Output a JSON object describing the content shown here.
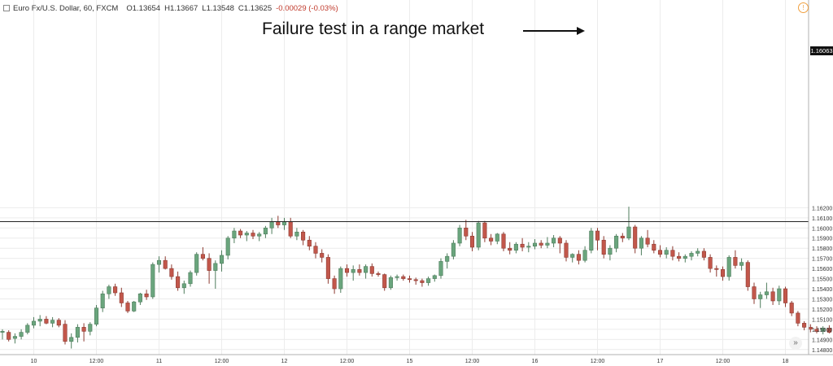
{
  "header": {
    "symbol": "Euro Fx/U.S. Dollar, 60, FXCM",
    "open": "O1.13654",
    "high": "H1.13667",
    "low": "L1.13548",
    "close": "C1.13625",
    "change": "-0.00029 (-0.03%)",
    "warning": "!"
  },
  "annotation": {
    "text": "Failure test in a range market"
  },
  "scroll_button": "»",
  "current_price_tag": "1.16063",
  "colors": {
    "up": "#6aa57d",
    "down": "#c2574b",
    "grid": "#ececec",
    "axis_text": "#333333"
  },
  "chart_data": {
    "type": "candlestick",
    "title": "",
    "current_price": 1.16063,
    "ylim": [
      1.1475,
      1.1825
    ],
    "y_ticks": [
      "1.14800",
      "1.14900",
      "1.15000",
      "1.15100",
      "1.15200",
      "1.15300",
      "1.15400",
      "1.15500",
      "1.15600",
      "1.15700",
      "1.15800",
      "1.15900",
      "1.16000",
      "1.16100",
      "1.16200"
    ],
    "x_ticks": [
      {
        "label": "10",
        "index": 5
      },
      {
        "label": "12:00",
        "index": 15
      },
      {
        "label": "11",
        "index": 25
      },
      {
        "label": "12:00",
        "index": 35
      },
      {
        "label": "12",
        "index": 45
      },
      {
        "label": "12:00",
        "index": 55
      },
      {
        "label": "15",
        "index": 65
      },
      {
        "label": "12:00",
        "index": 75
      },
      {
        "label": "16",
        "index": 85
      },
      {
        "label": "12:00",
        "index": 95
      },
      {
        "label": "17",
        "index": 105
      },
      {
        "label": "12:00",
        "index": 115
      },
      {
        "label": "18",
        "index": 125
      }
    ],
    "candles": [
      {
        "o": 1.1497,
        "h": 1.15,
        "l": 1.149,
        "c": 1.1498
      },
      {
        "o": 1.1497,
        "h": 1.1499,
        "l": 1.1488,
        "c": 1.149
      },
      {
        "o": 1.1491,
        "h": 1.1496,
        "l": 1.1486,
        "c": 1.1493
      },
      {
        "o": 1.1493,
        "h": 1.15,
        "l": 1.149,
        "c": 1.1497
      },
      {
        "o": 1.1497,
        "h": 1.1506,
        "l": 1.1495,
        "c": 1.1504
      },
      {
        "o": 1.1504,
        "h": 1.1512,
        "l": 1.1501,
        "c": 1.1508
      },
      {
        "o": 1.1508,
        "h": 1.1514,
        "l": 1.1503,
        "c": 1.151
      },
      {
        "o": 1.151,
        "h": 1.1513,
        "l": 1.1505,
        "c": 1.1506
      },
      {
        "o": 1.1506,
        "h": 1.1512,
        "l": 1.1502,
        "c": 1.1509
      },
      {
        "o": 1.1509,
        "h": 1.1511,
        "l": 1.1502,
        "c": 1.1504
      },
      {
        "o": 1.1505,
        "h": 1.1509,
        "l": 1.1485,
        "c": 1.1488
      },
      {
        "o": 1.1488,
        "h": 1.1496,
        "l": 1.1481,
        "c": 1.1492
      },
      {
        "o": 1.1492,
        "h": 1.1505,
        "l": 1.1487,
        "c": 1.1502
      },
      {
        "o": 1.1502,
        "h": 1.1506,
        "l": 1.1488,
        "c": 1.1498
      },
      {
        "o": 1.1498,
        "h": 1.1507,
        "l": 1.1494,
        "c": 1.1505
      },
      {
        "o": 1.1505,
        "h": 1.1524,
        "l": 1.1503,
        "c": 1.1521
      },
      {
        "o": 1.1521,
        "h": 1.1538,
        "l": 1.1517,
        "c": 1.1535
      },
      {
        "o": 1.1535,
        "h": 1.1544,
        "l": 1.153,
        "c": 1.1542
      },
      {
        "o": 1.1542,
        "h": 1.1545,
        "l": 1.1533,
        "c": 1.1536
      },
      {
        "o": 1.1536,
        "h": 1.1541,
        "l": 1.1522,
        "c": 1.1526
      },
      {
        "o": 1.1526,
        "h": 1.1528,
        "l": 1.1516,
        "c": 1.1518
      },
      {
        "o": 1.1518,
        "h": 1.1528,
        "l": 1.1517,
        "c": 1.1527
      },
      {
        "o": 1.1527,
        "h": 1.1536,
        "l": 1.1524,
        "c": 1.1535
      },
      {
        "o": 1.1535,
        "h": 1.1539,
        "l": 1.1529,
        "c": 1.1532
      },
      {
        "o": 1.1532,
        "h": 1.1566,
        "l": 1.153,
        "c": 1.1564
      },
      {
        "o": 1.1564,
        "h": 1.1572,
        "l": 1.1556,
        "c": 1.1568
      },
      {
        "o": 1.1568,
        "h": 1.1572,
        "l": 1.1559,
        "c": 1.156
      },
      {
        "o": 1.156,
        "h": 1.1564,
        "l": 1.1549,
        "c": 1.1552
      },
      {
        "o": 1.1552,
        "h": 1.1557,
        "l": 1.1538,
        "c": 1.1541
      },
      {
        "o": 1.1541,
        "h": 1.1548,
        "l": 1.1535,
        "c": 1.1545
      },
      {
        "o": 1.1545,
        "h": 1.1558,
        "l": 1.1542,
        "c": 1.1556
      },
      {
        "o": 1.1556,
        "h": 1.1576,
        "l": 1.1553,
        "c": 1.1574
      },
      {
        "o": 1.1574,
        "h": 1.1581,
        "l": 1.1568,
        "c": 1.157
      },
      {
        "o": 1.157,
        "h": 1.1575,
        "l": 1.1545,
        "c": 1.1558
      },
      {
        "o": 1.1558,
        "h": 1.1568,
        "l": 1.154,
        "c": 1.1565
      },
      {
        "o": 1.1565,
        "h": 1.1578,
        "l": 1.1557,
        "c": 1.1573
      },
      {
        "o": 1.1573,
        "h": 1.1592,
        "l": 1.1569,
        "c": 1.159
      },
      {
        "o": 1.159,
        "h": 1.16,
        "l": 1.1585,
        "c": 1.1597
      },
      {
        "o": 1.1597,
        "h": 1.1599,
        "l": 1.159,
        "c": 1.1593
      },
      {
        "o": 1.1593,
        "h": 1.1597,
        "l": 1.1587,
        "c": 1.1595
      },
      {
        "o": 1.1595,
        "h": 1.1598,
        "l": 1.1589,
        "c": 1.1592
      },
      {
        "o": 1.1592,
        "h": 1.1596,
        "l": 1.1587,
        "c": 1.1594
      },
      {
        "o": 1.1594,
        "h": 1.1602,
        "l": 1.159,
        "c": 1.16
      },
      {
        "o": 1.16,
        "h": 1.161,
        "l": 1.1594,
        "c": 1.1606
      },
      {
        "o": 1.1606,
        "h": 1.1612,
        "l": 1.16,
        "c": 1.1603
      },
      {
        "o": 1.1603,
        "h": 1.161,
        "l": 1.1598,
        "c": 1.1606
      },
      {
        "o": 1.1606,
        "h": 1.161,
        "l": 1.159,
        "c": 1.1592
      },
      {
        "o": 1.1592,
        "h": 1.16,
        "l": 1.1588,
        "c": 1.1596
      },
      {
        "o": 1.1596,
        "h": 1.1598,
        "l": 1.1583,
        "c": 1.1588
      },
      {
        "o": 1.1588,
        "h": 1.1592,
        "l": 1.1578,
        "c": 1.1582
      },
      {
        "o": 1.1582,
        "h": 1.1586,
        "l": 1.157,
        "c": 1.1575
      },
      {
        "o": 1.1575,
        "h": 1.1579,
        "l": 1.1566,
        "c": 1.1571
      },
      {
        "o": 1.1571,
        "h": 1.1574,
        "l": 1.1545,
        "c": 1.155
      },
      {
        "o": 1.155,
        "h": 1.1553,
        "l": 1.1535,
        "c": 1.154
      },
      {
        "o": 1.154,
        "h": 1.1562,
        "l": 1.1536,
        "c": 1.156
      },
      {
        "o": 1.156,
        "h": 1.1564,
        "l": 1.1552,
        "c": 1.1556
      },
      {
        "o": 1.1556,
        "h": 1.1563,
        "l": 1.1548,
        "c": 1.1559
      },
      {
        "o": 1.1559,
        "h": 1.1564,
        "l": 1.1553,
        "c": 1.1556
      },
      {
        "o": 1.1556,
        "h": 1.1564,
        "l": 1.155,
        "c": 1.1562
      },
      {
        "o": 1.1562,
        "h": 1.1565,
        "l": 1.1552,
        "c": 1.1555
      },
      {
        "o": 1.1555,
        "h": 1.1557,
        "l": 1.1552,
        "c": 1.1554
      },
      {
        "o": 1.1554,
        "h": 1.1555,
        "l": 1.1538,
        "c": 1.1541
      },
      {
        "o": 1.1541,
        "h": 1.1553,
        "l": 1.1539,
        "c": 1.1551
      },
      {
        "o": 1.1551,
        "h": 1.1554,
        "l": 1.1548,
        "c": 1.1552
      },
      {
        "o": 1.1552,
        "h": 1.1554,
        "l": 1.1548,
        "c": 1.155
      },
      {
        "o": 1.155,
        "h": 1.1553,
        "l": 1.1546,
        "c": 1.1549
      },
      {
        "o": 1.1549,
        "h": 1.1551,
        "l": 1.1544,
        "c": 1.1548
      },
      {
        "o": 1.1548,
        "h": 1.155,
        "l": 1.1542,
        "c": 1.1546
      },
      {
        "o": 1.1546,
        "h": 1.1552,
        "l": 1.1543,
        "c": 1.155
      },
      {
        "o": 1.155,
        "h": 1.1554,
        "l": 1.1547,
        "c": 1.1553
      },
      {
        "o": 1.1553,
        "h": 1.157,
        "l": 1.155,
        "c": 1.1567
      },
      {
        "o": 1.1567,
        "h": 1.1575,
        "l": 1.156,
        "c": 1.1572
      },
      {
        "o": 1.1572,
        "h": 1.1588,
        "l": 1.1569,
        "c": 1.1585
      },
      {
        "o": 1.1585,
        "h": 1.1603,
        "l": 1.1582,
        "c": 1.16
      },
      {
        "o": 1.16,
        "h": 1.1608,
        "l": 1.1588,
        "c": 1.1592
      },
      {
        "o": 1.1592,
        "h": 1.1596,
        "l": 1.1577,
        "c": 1.1581
      },
      {
        "o": 1.1581,
        "h": 1.1607,
        "l": 1.1578,
        "c": 1.1605
      },
      {
        "o": 1.1605,
        "h": 1.1607,
        "l": 1.1586,
        "c": 1.159
      },
      {
        "o": 1.159,
        "h": 1.1594,
        "l": 1.1583,
        "c": 1.1587
      },
      {
        "o": 1.1587,
        "h": 1.1595,
        "l": 1.1584,
        "c": 1.1594
      },
      {
        "o": 1.1594,
        "h": 1.1596,
        "l": 1.1577,
        "c": 1.158
      },
      {
        "o": 1.158,
        "h": 1.1586,
        "l": 1.1574,
        "c": 1.1578
      },
      {
        "o": 1.1578,
        "h": 1.1586,
        "l": 1.1575,
        "c": 1.1584
      },
      {
        "o": 1.1584,
        "h": 1.159,
        "l": 1.1577,
        "c": 1.1581
      },
      {
        "o": 1.1581,
        "h": 1.1586,
        "l": 1.1576,
        "c": 1.1582
      },
      {
        "o": 1.1582,
        "h": 1.1589,
        "l": 1.1579,
        "c": 1.1585
      },
      {
        "o": 1.1585,
        "h": 1.1588,
        "l": 1.158,
        "c": 1.1583
      },
      {
        "o": 1.1583,
        "h": 1.1591,
        "l": 1.158,
        "c": 1.1585
      },
      {
        "o": 1.1585,
        "h": 1.1593,
        "l": 1.1581,
        "c": 1.159
      },
      {
        "o": 1.159,
        "h": 1.1592,
        "l": 1.1575,
        "c": 1.1585
      },
      {
        "o": 1.1585,
        "h": 1.1588,
        "l": 1.1567,
        "c": 1.1571
      },
      {
        "o": 1.1571,
        "h": 1.1575,
        "l": 1.1566,
        "c": 1.1574
      },
      {
        "o": 1.1574,
        "h": 1.1578,
        "l": 1.1564,
        "c": 1.1568
      },
      {
        "o": 1.1568,
        "h": 1.1582,
        "l": 1.1566,
        "c": 1.1578
      },
      {
        "o": 1.1578,
        "h": 1.16,
        "l": 1.1575,
        "c": 1.1597
      },
      {
        "o": 1.1597,
        "h": 1.16,
        "l": 1.1578,
        "c": 1.1588
      },
      {
        "o": 1.1588,
        "h": 1.1592,
        "l": 1.157,
        "c": 1.1574
      },
      {
        "o": 1.1574,
        "h": 1.1583,
        "l": 1.1568,
        "c": 1.158
      },
      {
        "o": 1.158,
        "h": 1.1594,
        "l": 1.1576,
        "c": 1.1592
      },
      {
        "o": 1.1592,
        "h": 1.1595,
        "l": 1.1586,
        "c": 1.159
      },
      {
        "o": 1.159,
        "h": 1.1621,
        "l": 1.1588,
        "c": 1.1601
      },
      {
        "o": 1.1601,
        "h": 1.1603,
        "l": 1.1575,
        "c": 1.158
      },
      {
        "o": 1.158,
        "h": 1.1592,
        "l": 1.1573,
        "c": 1.159
      },
      {
        "o": 1.159,
        "h": 1.1598,
        "l": 1.1581,
        "c": 1.1584
      },
      {
        "o": 1.1584,
        "h": 1.1588,
        "l": 1.1575,
        "c": 1.1578
      },
      {
        "o": 1.1578,
        "h": 1.1583,
        "l": 1.1571,
        "c": 1.1574
      },
      {
        "o": 1.1574,
        "h": 1.1581,
        "l": 1.157,
        "c": 1.1578
      },
      {
        "o": 1.1578,
        "h": 1.1582,
        "l": 1.1568,
        "c": 1.1572
      },
      {
        "o": 1.1572,
        "h": 1.1576,
        "l": 1.1567,
        "c": 1.157
      },
      {
        "o": 1.157,
        "h": 1.1574,
        "l": 1.1566,
        "c": 1.1572
      },
      {
        "o": 1.1572,
        "h": 1.1577,
        "l": 1.1568,
        "c": 1.1575
      },
      {
        "o": 1.1575,
        "h": 1.158,
        "l": 1.1572,
        "c": 1.1577
      },
      {
        "o": 1.1577,
        "h": 1.158,
        "l": 1.1568,
        "c": 1.1571
      },
      {
        "o": 1.1571,
        "h": 1.1574,
        "l": 1.1556,
        "c": 1.156
      },
      {
        "o": 1.156,
        "h": 1.1563,
        "l": 1.1552,
        "c": 1.1559
      },
      {
        "o": 1.1559,
        "h": 1.1562,
        "l": 1.1548,
        "c": 1.1552
      },
      {
        "o": 1.1552,
        "h": 1.1573,
        "l": 1.1548,
        "c": 1.1571
      },
      {
        "o": 1.1571,
        "h": 1.1578,
        "l": 1.156,
        "c": 1.1563
      },
      {
        "o": 1.1563,
        "h": 1.157,
        "l": 1.1558,
        "c": 1.1566
      },
      {
        "o": 1.1566,
        "h": 1.1568,
        "l": 1.1538,
        "c": 1.1542
      },
      {
        "o": 1.1542,
        "h": 1.1546,
        "l": 1.1525,
        "c": 1.153
      },
      {
        "o": 1.153,
        "h": 1.1537,
        "l": 1.1521,
        "c": 1.1534
      },
      {
        "o": 1.1534,
        "h": 1.1546,
        "l": 1.153,
        "c": 1.1537
      },
      {
        "o": 1.1537,
        "h": 1.1541,
        "l": 1.1524,
        "c": 1.1528
      },
      {
        "o": 1.1528,
        "h": 1.1543,
        "l": 1.1524,
        "c": 1.154
      },
      {
        "o": 1.154,
        "h": 1.1542,
        "l": 1.1522,
        "c": 1.1526
      },
      {
        "o": 1.1526,
        "h": 1.1528,
        "l": 1.1513,
        "c": 1.1516
      },
      {
        "o": 1.1516,
        "h": 1.1518,
        "l": 1.1503,
        "c": 1.1506
      },
      {
        "o": 1.1506,
        "h": 1.1508,
        "l": 1.1499,
        "c": 1.1502
      },
      {
        "o": 1.1502,
        "h": 1.1505,
        "l": 1.1497,
        "c": 1.15
      },
      {
        "o": 1.15,
        "h": 1.1503,
        "l": 1.1496,
        "c": 1.1498
      },
      {
        "o": 1.1498,
        "h": 1.1503,
        "l": 1.1495,
        "c": 1.1501
      },
      {
        "o": 1.1501,
        "h": 1.1504,
        "l": 1.1496,
        "c": 1.1497
      },
      {
        "o": 1.1497,
        "h": 1.1503,
        "l": 1.1494,
        "c": 1.1501
      },
      {
        "o": 1.1501,
        "h": 1.1503,
        "l": 1.1496,
        "c": 1.1499
      },
      {
        "o": 1.1499,
        "h": 1.1503,
        "l": 1.1495,
        "c": 1.1501
      },
      {
        "o": 1.1501,
        "h": 1.1502,
        "l": 1.1486,
        "c": 1.149
      },
      {
        "o": 1.149,
        "h": 1.1491,
        "l": 1.1481,
        "c": 1.1488
      }
    ]
  }
}
